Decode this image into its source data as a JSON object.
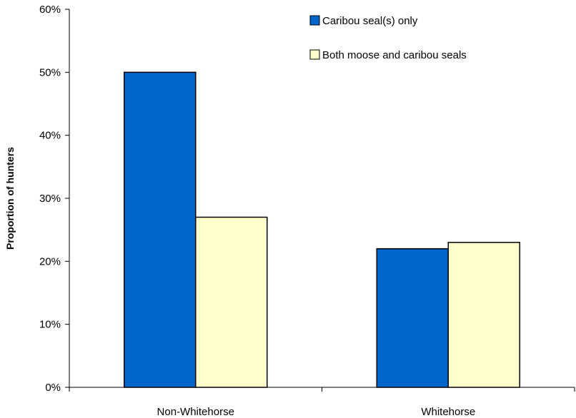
{
  "chart_data": {
    "type": "bar",
    "title": "",
    "xlabel": "",
    "ylabel": "Proportion of hunters",
    "categories": [
      "Non-Whitehorse",
      "Whitehorse"
    ],
    "series": [
      {
        "name": "Caribou seal(s) only",
        "values": [
          50,
          22
        ],
        "color": "#0066CC"
      },
      {
        "name": "Both moose and caribou seals",
        "values": [
          27,
          23
        ],
        "color": "#FFFFCC"
      }
    ],
    "ylim": [
      0,
      60
    ],
    "yticks": [
      0,
      10,
      20,
      30,
      40,
      50,
      60
    ],
    "ytick_labels": [
      "0%",
      "10%",
      "20%",
      "30%",
      "40%",
      "50%",
      "60%"
    ],
    "grid": false,
    "legend_position": "top-right"
  }
}
